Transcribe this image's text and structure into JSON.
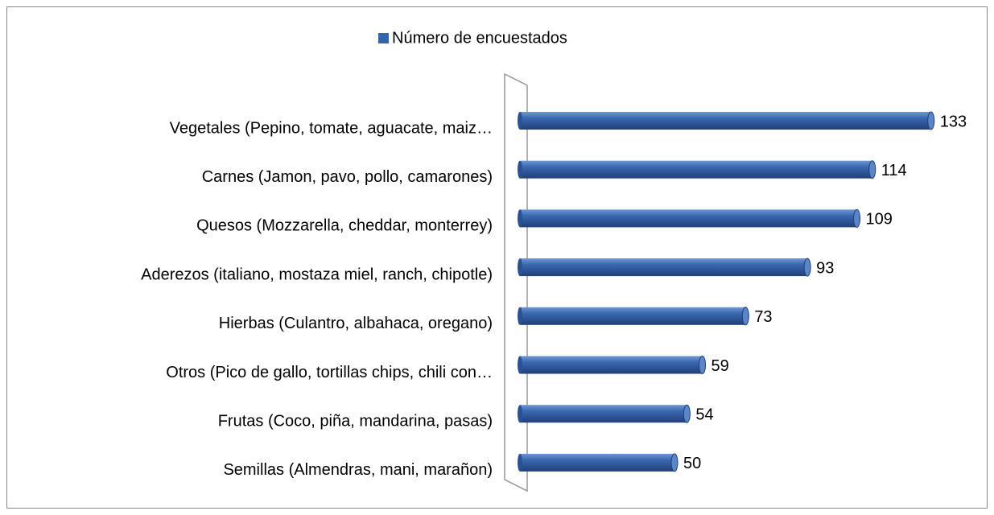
{
  "chart_data": {
    "type": "bar",
    "orientation": "horizontal",
    "legend": "Número de encuestados",
    "series": [
      {
        "name": "Número de encuestados",
        "color": "#3464ac",
        "values": [
          133,
          114,
          109,
          93,
          73,
          59,
          54,
          50
        ]
      }
    ],
    "categories": [
      "Vegetales (Pepino, tomate, aguacate, maiz…",
      "Carnes (Jamon, pavo, pollo, camarones)",
      "Quesos (Mozzarella, cheddar, monterrey)",
      "Aderezos (italiano, mostaza miel, ranch, chipotle)",
      "Hierbas (Culantro, albahaca, oregano)",
      "Otros (Pico de gallo, tortillas chips, chili con…",
      "Frutas (Coco, piña, mandarina, pasas)",
      "Semillas (Almendras, mani, marañon)"
    ]
  }
}
